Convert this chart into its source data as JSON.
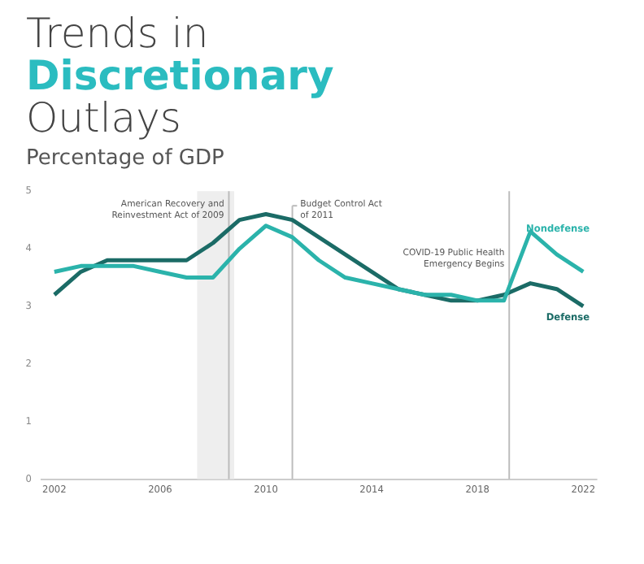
{
  "chart_data": {
    "type": "line",
    "title": "Trends in Discretionary Outlays",
    "subtitle": "Percentage of GDP",
    "x": [
      2002,
      2003,
      2004,
      2005,
      2006,
      2007,
      2008,
      2009,
      2010,
      2011,
      2012,
      2013,
      2014,
      2015,
      2016,
      2017,
      2018,
      2019,
      2020,
      2021,
      2022
    ],
    "series": [
      {
        "name": "Nondefense",
        "color": "#2bb3ab",
        "values": [
          3.6,
          3.7,
          3.7,
          3.7,
          3.6,
          3.5,
          3.5,
          4.0,
          4.4,
          4.2,
          3.8,
          3.5,
          3.4,
          3.3,
          3.2,
          3.2,
          3.1,
          3.1,
          4.3,
          3.9,
          3.6
        ]
      },
      {
        "name": "Defense",
        "color": "#1b6b66",
        "values": [
          3.2,
          3.6,
          3.8,
          3.8,
          3.8,
          3.8,
          4.1,
          4.5,
          4.6,
          4.5,
          4.2,
          3.9,
          3.6,
          3.3,
          3.2,
          3.1,
          3.1,
          3.2,
          3.4,
          3.3,
          3.0
        ]
      }
    ],
    "xlim": [
      2001.5,
      2022.5
    ],
    "xticks": [
      2002,
      2006,
      2010,
      2014,
      2018,
      2022
    ],
    "ylim": [
      0,
      5
    ],
    "yticks": [
      0,
      1,
      2,
      3,
      4,
      5
    ],
    "bands": [
      {
        "axis": "x",
        "from": 2007.4,
        "to": 2008.8,
        "color": "#eeeeee"
      }
    ],
    "ref_lines": [
      {
        "axis": "x",
        "value": 2008.6,
        "label": "American Recovery and Reinvestment Act of 2009"
      },
      {
        "axis": "x",
        "value": 2011.0,
        "label": "Budget Control Act of 2011"
      },
      {
        "axis": "x",
        "value": 2019.2,
        "label": "COVID-19 Public Health Emergency Begins"
      }
    ],
    "grid": false,
    "legend": false,
    "marker": "none",
    "line_style": "solid"
  }
}
